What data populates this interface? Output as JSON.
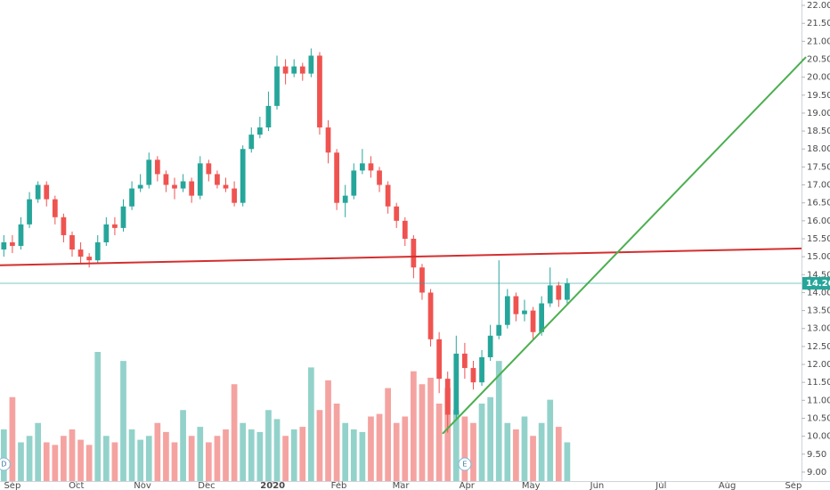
{
  "chart_data": {
    "type": "candlestick",
    "x": [
      -4,
      0,
      4,
      8,
      12,
      16,
      20,
      24,
      28,
      32,
      36,
      40,
      44,
      48,
      52,
      56,
      60,
      64,
      68,
      72,
      76,
      80,
      84,
      88,
      92,
      96,
      100,
      104,
      108,
      112,
      116,
      120,
      124,
      128,
      132,
      136,
      140,
      144,
      148,
      152,
      156,
      160,
      164,
      168,
      172,
      176,
      180,
      184,
      188,
      192,
      196,
      200,
      204,
      208,
      212,
      216,
      220,
      224,
      228,
      232,
      236,
      240,
      244,
      248,
      252,
      256,
      260
    ],
    "open": [
      15.2,
      15.4,
      15.3,
      15.9,
      16.6,
      17.0,
      16.6,
      16.1,
      15.6,
      15.2,
      15.0,
      14.9,
      15.4,
      15.9,
      15.8,
      16.4,
      16.9,
      17.0,
      17.7,
      17.3,
      17.0,
      16.9,
      17.1,
      16.7,
      17.6,
      17.3,
      17.0,
      16.9,
      16.5,
      18.0,
      18.4,
      18.6,
      19.2,
      20.3,
      20.1,
      20.3,
      20.1,
      20.6,
      18.6,
      17.9,
      16.5,
      16.7,
      17.4,
      17.6,
      17.4,
      17.0,
      16.4,
      16.0,
      15.5,
      14.7,
      14.0,
      12.7,
      11.6,
      10.6,
      12.3,
      11.9,
      11.5,
      12.2,
      12.8,
      13.1,
      13.9,
      13.4,
      13.5,
      12.9,
      13.7,
      14.2,
      13.8
    ],
    "high": [
      15.6,
      15.6,
      16.1,
      16.8,
      17.1,
      17.1,
      16.7,
      16.2,
      15.7,
      15.4,
      15.1,
      15.6,
      16.1,
      16.1,
      16.6,
      17.1,
      17.3,
      17.9,
      17.8,
      17.4,
      17.2,
      17.3,
      17.2,
      17.8,
      17.7,
      17.4,
      17.2,
      17.1,
      18.1,
      18.6,
      18.9,
      19.6,
      20.6,
      20.5,
      20.5,
      20.4,
      20.8,
      20.7,
      18.8,
      18.0,
      17.0,
      17.6,
      18.0,
      17.8,
      17.5,
      17.1,
      16.5,
      16.1,
      15.6,
      14.8,
      14.1,
      12.9,
      11.8,
      12.8,
      12.6,
      12.1,
      12.4,
      13.1,
      14.9,
      14.1,
      14.0,
      13.8,
      13.6,
      13.9,
      14.7,
      14.3,
      14.4
    ],
    "low": [
      15.0,
      15.1,
      15.2,
      15.8,
      16.5,
      16.4,
      15.9,
      15.4,
      15.0,
      14.8,
      14.7,
      14.8,
      15.3,
      15.6,
      15.7,
      16.3,
      16.8,
      16.9,
      17.1,
      16.8,
      16.6,
      16.8,
      16.5,
      16.6,
      17.1,
      16.9,
      16.8,
      16.4,
      16.4,
      17.9,
      18.3,
      18.5,
      19.1,
      19.8,
      20.0,
      19.9,
      20.0,
      18.4,
      17.6,
      16.3,
      16.1,
      16.6,
      17.3,
      17.2,
      16.8,
      16.2,
      15.8,
      15.3,
      14.4,
      13.8,
      12.5,
      11.2,
      10.1,
      10.5,
      11.6,
      11.3,
      11.4,
      12.1,
      12.7,
      13.0,
      13.2,
      13.2,
      12.7,
      12.8,
      13.6,
      13.6,
      13.7
    ],
    "close": [
      15.4,
      15.3,
      15.9,
      16.6,
      17.0,
      16.6,
      16.1,
      15.6,
      15.2,
      15.0,
      14.9,
      15.4,
      15.9,
      15.8,
      16.4,
      16.9,
      17.0,
      17.7,
      17.3,
      17.0,
      16.9,
      17.1,
      16.7,
      17.6,
      17.3,
      17.0,
      16.9,
      16.5,
      18.0,
      18.4,
      18.6,
      19.2,
      20.3,
      20.1,
      20.3,
      20.1,
      20.6,
      18.6,
      17.9,
      16.5,
      16.7,
      17.4,
      17.6,
      17.4,
      17.0,
      16.4,
      16.0,
      15.5,
      14.7,
      14.0,
      12.7,
      11.6,
      10.6,
      12.3,
      11.9,
      11.5,
      12.2,
      12.8,
      13.1,
      13.9,
      13.4,
      13.5,
      12.9,
      13.7,
      14.2,
      13.8,
      14.26
    ],
    "volume": [
      40,
      65,
      30,
      35,
      45,
      30,
      28,
      35,
      40,
      32,
      28,
      100,
      35,
      30,
      93,
      40,
      32,
      35,
      45,
      38,
      30,
      55,
      35,
      42,
      30,
      35,
      40,
      75,
      45,
      40,
      38,
      55,
      48,
      35,
      40,
      42,
      88,
      55,
      78,
      60,
      45,
      40,
      38,
      50,
      52,
      72,
      45,
      50,
      85,
      75,
      80,
      60,
      72,
      55,
      50,
      45,
      60,
      65,
      93,
      45,
      40,
      50,
      35,
      45,
      63,
      42,
      30
    ],
    "colors": {
      "up": "#26a69a",
      "down": "#ef5350",
      "up_volume": "#93d2cb",
      "down_volume": "#f4a3a1"
    },
    "xlim": [
      -5.8,
      369.8
    ],
    "ylim": [
      8.75,
      22.15
    ],
    "xticks": [
      {
        "value": 0,
        "label": "Sep"
      },
      {
        "value": 30,
        "label": "Oct"
      },
      {
        "value": 61,
        "label": "Nov"
      },
      {
        "value": 91,
        "label": "Dec"
      },
      {
        "value": 122,
        "label": "2020"
      },
      {
        "value": 153,
        "label": "Feb"
      },
      {
        "value": 182,
        "label": "Mar"
      },
      {
        "value": 213,
        "label": "Apr"
      },
      {
        "value": 243,
        "label": "May"
      },
      {
        "value": 274,
        "label": "Jun"
      },
      {
        "value": 304,
        "label": "Jul"
      },
      {
        "value": 335,
        "label": "Aug"
      },
      {
        "value": 366,
        "label": "Sep"
      }
    ],
    "yticks": [
      {
        "value": 9,
        "label": "9.00"
      },
      {
        "value": 9.5,
        "label": "9.50"
      },
      {
        "value": 10,
        "label": "10.00"
      },
      {
        "value": 10.5,
        "label": "10.50"
      },
      {
        "value": 11,
        "label": "11.00"
      },
      {
        "value": 11.5,
        "label": "11.50"
      },
      {
        "value": 12,
        "label": "12.00"
      },
      {
        "value": 12.5,
        "label": "12.50"
      },
      {
        "value": 13,
        "label": "13.00"
      },
      {
        "value": 13.5,
        "label": "13.50"
      },
      {
        "value": 14,
        "label": "14.00"
      },
      {
        "value": 14.5,
        "label": "14.50"
      },
      {
        "value": 15,
        "label": "15.00"
      },
      {
        "value": 15.5,
        "label": "15.50"
      },
      {
        "value": 16,
        "label": "16.00"
      },
      {
        "value": 16.5,
        "label": "16.50"
      },
      {
        "value": 17,
        "label": "17.00"
      },
      {
        "value": 17.5,
        "label": "17.50"
      },
      {
        "value": 18,
        "label": "18.00"
      },
      {
        "value": 18.5,
        "label": "18.50"
      },
      {
        "value": 19,
        "label": "19.00"
      },
      {
        "value": 19.5,
        "label": "19.50"
      },
      {
        "value": 20,
        "label": "20.00"
      },
      {
        "value": 20.5,
        "label": "20.50"
      },
      {
        "value": 21,
        "label": "21.00"
      },
      {
        "value": 21.5,
        "label": "21.50"
      },
      {
        "value": 22,
        "label": "22.00"
      }
    ],
    "trend_lines": [
      {
        "color": "#d32f2f",
        "x": [
          -5.8,
          369.8
        ],
        "y": [
          14.76,
          15.23
        ]
      },
      {
        "color": "#4caf50",
        "x": [
          201.6,
          371.9
        ],
        "y": [
          10.07,
          20.56
        ]
      }
    ],
    "price_line_color": "#26a69a",
    "events": [
      {
        "label": "D",
        "x": -4
      },
      {
        "label": "E",
        "x": 212
      }
    ]
  }
}
